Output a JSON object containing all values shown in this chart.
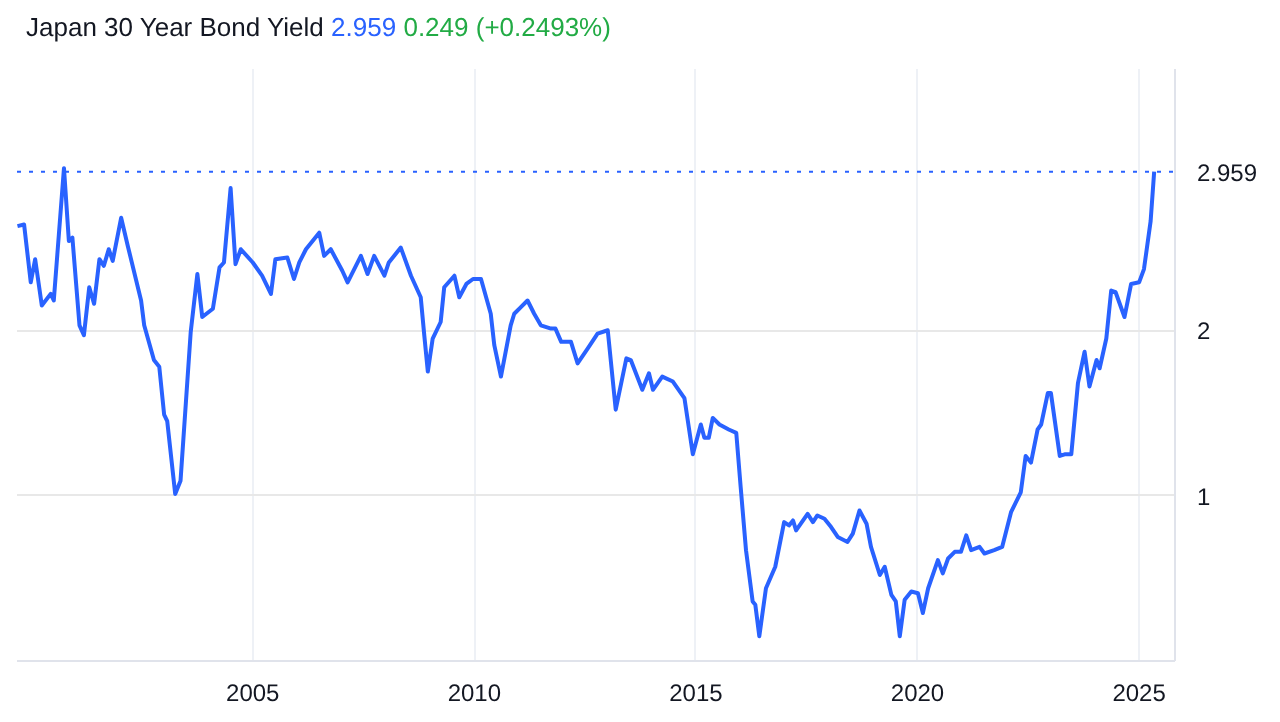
{
  "chart_data": {
    "type": "line",
    "title": "Japan 30 Year Bond Yield",
    "annotations": [
      "2.959",
      "0.249 (+0.2493%)"
    ],
    "x": [
      1999.69,
      1999.84,
      1999.99,
      2000.09,
      2000.24,
      2000.44,
      2000.51,
      2000.74,
      2000.85,
      2000.93,
      2001.09,
      2001.19,
      2001.31,
      2001.42,
      2001.54,
      2001.64,
      2001.75,
      2001.84,
      2002.03,
      2002.18,
      2002.48,
      2002.55,
      2002.77,
      2002.89,
      2003.0,
      2003.07,
      2003.25,
      2003.37,
      2003.6,
      2003.75,
      2003.86,
      2004.1,
      2004.25,
      2004.35,
      2004.5,
      2004.61,
      2004.73,
      2005.0,
      2005.21,
      2005.41,
      2005.51,
      2005.78,
      2005.93,
      2006.05,
      2006.2,
      2006.5,
      2006.61,
      2006.76,
      2007.02,
      2007.14,
      2007.44,
      2007.59,
      2007.74,
      2007.97,
      2008.07,
      2008.34,
      2008.57,
      2008.79,
      2008.87,
      2008.95,
      2009.06,
      2009.24,
      2009.32,
      2009.55,
      2009.66,
      2009.82,
      2009.97,
      2010.15,
      2010.37,
      2010.45,
      2010.6,
      2010.82,
      2010.9,
      2011.05,
      2011.2,
      2011.35,
      2011.5,
      2011.73,
      2011.83,
      2011.96,
      2012.18,
      2012.33,
      2012.56,
      2012.78,
      2013.01,
      2013.19,
      2013.43,
      2013.53,
      2013.79,
      2013.94,
      2014.03,
      2014.24,
      2014.48,
      2014.74,
      2014.93,
      2015.11,
      2015.19,
      2015.29,
      2015.38,
      2015.53,
      2015.74,
      2015.91,
      2016.01,
      2016.13,
      2016.28,
      2016.34,
      2016.43,
      2016.58,
      2016.79,
      2016.99,
      2017.1,
      2017.19,
      2017.26,
      2017.52,
      2017.64,
      2017.74,
      2017.9,
      2018.05,
      2018.2,
      2018.42,
      2018.54,
      2018.69,
      2018.85,
      2018.95,
      2019.15,
      2019.26,
      2019.41,
      2019.51,
      2019.6,
      2019.71,
      2019.86,
      2020.01,
      2020.12,
      2020.24,
      2020.46,
      2020.57,
      2020.69,
      2020.84,
      2020.98,
      2021.1,
      2021.21,
      2021.4,
      2021.51,
      2021.73,
      2021.91,
      2022.11,
      2022.33,
      2022.44,
      2022.56,
      2022.71,
      2022.79,
      2022.94,
      2023.01,
      2023.21,
      2023.32,
      2023.47,
      2023.62,
      2023.77,
      2023.88,
      2024.04,
      2024.11,
      2024.26,
      2024.37,
      2024.47,
      2024.67,
      2024.82,
      2025.0,
      2025.11,
      2025.26,
      2025.34
    ],
    "series": [
      {
        "color": "#2962ff",
        "values": [
          2.63,
          2.64,
          2.29,
          2.43,
          2.15,
          2.22,
          2.18,
          2.98,
          2.54,
          2.56,
          2.03,
          1.97,
          2.26,
          2.16,
          2.43,
          2.39,
          2.49,
          2.42,
          2.68,
          2.51,
          2.18,
          2.03,
          1.82,
          1.78,
          1.49,
          1.45,
          1.01,
          1.09,
          1.99,
          2.34,
          2.08,
          2.13,
          2.38,
          2.41,
          2.86,
          2.4,
          2.49,
          2.41,
          2.33,
          2.22,
          2.43,
          2.44,
          2.31,
          2.41,
          2.49,
          2.59,
          2.45,
          2.49,
          2.36,
          2.29,
          2.45,
          2.34,
          2.45,
          2.33,
          2.41,
          2.5,
          2.33,
          2.2,
          1.97,
          1.75,
          1.95,
          2.05,
          2.26,
          2.33,
          2.2,
          2.28,
          2.31,
          2.31,
          2.1,
          1.91,
          1.72,
          2.03,
          2.1,
          2.14,
          2.18,
          2.1,
          2.03,
          2.01,
          2.01,
          1.93,
          1.93,
          1.8,
          1.89,
          1.98,
          2.0,
          1.52,
          1.83,
          1.82,
          1.64,
          1.74,
          1.64,
          1.72,
          1.69,
          1.59,
          1.25,
          1.43,
          1.35,
          1.35,
          1.47,
          1.43,
          1.4,
          1.38,
          1.05,
          0.67,
          0.36,
          0.34,
          0.15,
          0.44,
          0.57,
          0.84,
          0.82,
          0.85,
          0.79,
          0.89,
          0.84,
          0.88,
          0.86,
          0.81,
          0.75,
          0.72,
          0.77,
          0.91,
          0.83,
          0.69,
          0.52,
          0.57,
          0.4,
          0.36,
          0.15,
          0.37,
          0.42,
          0.41,
          0.29,
          0.44,
          0.61,
          0.53,
          0.62,
          0.66,
          0.66,
          0.76,
          0.67,
          0.69,
          0.65,
          0.67,
          0.69,
          0.9,
          1.02,
          1.24,
          1.2,
          1.4,
          1.43,
          1.62,
          1.62,
          1.24,
          1.25,
          1.25,
          1.68,
          1.87,
          1.66,
          1.82,
          1.77,
          1.95,
          2.24,
          2.23,
          2.08,
          2.28,
          2.29,
          2.37,
          2.66,
          2.959
        ]
      }
    ],
    "xlim": [
      1999.68,
      2025.81
    ],
    "ylim": [
      0,
      3.58
    ],
    "xticks": [
      2005,
      2010,
      2015,
      2020,
      2025
    ],
    "yticks": [
      1,
      2
    ],
    "grid": true,
    "ref_lines": [
      {
        "axis": "y",
        "value": 2.959,
        "label": "2.959",
        "color": "#2962ff",
        "line_style": "dotted"
      }
    ]
  }
}
